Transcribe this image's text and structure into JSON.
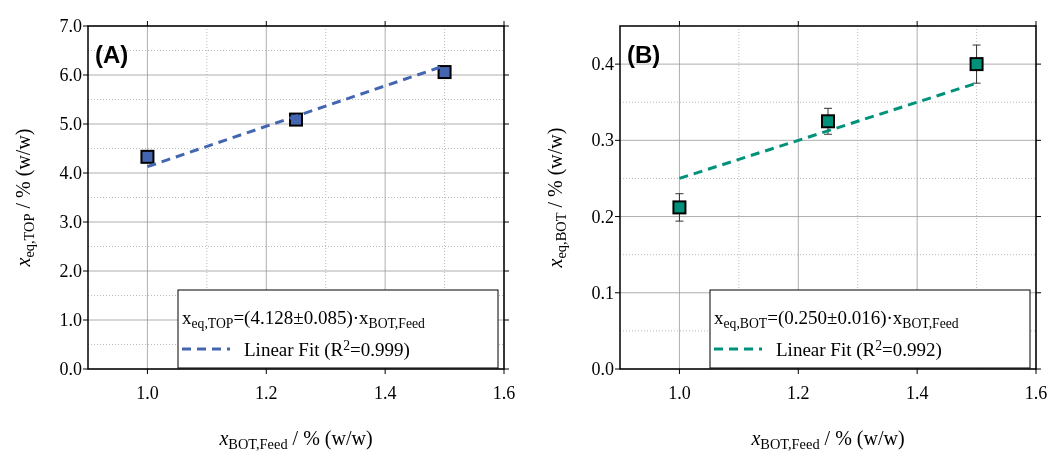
{
  "chart_data": [
    {
      "type": "scatter",
      "title": "(A)",
      "xlabel": "x$_{BOT,Feed}$ / % (w/w)",
      "ylabel": "x$_{eq,TOP}$ / % (w/w)",
      "xlim": [
        0.9,
        1.6
      ],
      "xticks": [
        {
          "value": 1.0,
          "label": "1.0"
        },
        {
          "value": 1.2,
          "label": "1.2"
        },
        {
          "value": 1.4,
          "label": "1.4"
        },
        {
          "value": 1.6,
          "label": "1.6"
        }
      ],
      "ylim": [
        0,
        7
      ],
      "yticks": [
        {
          "value": 0,
          "label": "0.0"
        },
        {
          "value": 1,
          "label": "1.0"
        },
        {
          "value": 2,
          "label": "2.0"
        },
        {
          "value": 3,
          "label": "3.0"
        },
        {
          "value": 4,
          "label": "4.0"
        },
        {
          "value": 5,
          "label": "5.0"
        },
        {
          "value": 6,
          "label": "6.0"
        },
        {
          "value": 7,
          "label": "7.0"
        }
      ],
      "grid": true,
      "legend": "bottom right",
      "annotations": [
        "x$_{eq,TOP}$=(4.128±0.085)·x$_{BOT,Feed}$"
      ],
      "series": [
        {
          "color": "#4466b0",
          "marker": "square",
          "x": [
            1.0,
            1.25,
            1.5
          ],
          "values": [
            4.33,
            5.09,
            6.06
          ]
        },
        {
          "type": "line",
          "name": "Linear Fit (R$^{2}$=0.999)",
          "color": "#4466b0",
          "line_style": "dashed",
          "x": [
            1.0,
            1.5
          ],
          "values": [
            4.13,
            6.19
          ]
        }
      ]
    },
    {
      "type": "scatter",
      "title": "(B)",
      "xlabel": "x$_{BOT,Feed}$ / % (w/w)",
      "ylabel": "x$_{eq,BOT}$ / % (w/w)",
      "xlim": [
        0.9,
        1.6
      ],
      "xticks": [
        {
          "value": 1.0,
          "label": "1.0"
        },
        {
          "value": 1.2,
          "label": "1.2"
        },
        {
          "value": 1.4,
          "label": "1.4"
        },
        {
          "value": 1.6,
          "label": "1.6"
        }
      ],
      "ylim": [
        0,
        0.45
      ],
      "yticks": [
        {
          "value": 0,
          "label": "0.0"
        },
        0.1,
        0.2,
        0.3,
        0.4
      ],
      "grid": true,
      "legend": "bottom right",
      "annotations": [
        "x$_{eq,BOT}$=(0.250±0.016)·x$_{BOT,Feed}$"
      ],
      "series": [
        {
          "color": "#00917a",
          "marker": "square",
          "x": [
            1.0,
            1.25,
            1.5
          ],
          "values": [
            0.212,
            0.325,
            0.4
          ],
          "errors": [
            0.018,
            0.017,
            0.025
          ]
        },
        {
          "type": "line",
          "name": "Linear Fit (R$^{2}$=0.992)",
          "color": "#00917a",
          "line_style": "dashed",
          "x": [
            1.0,
            1.5
          ],
          "values": [
            0.25,
            0.375
          ]
        }
      ]
    }
  ]
}
